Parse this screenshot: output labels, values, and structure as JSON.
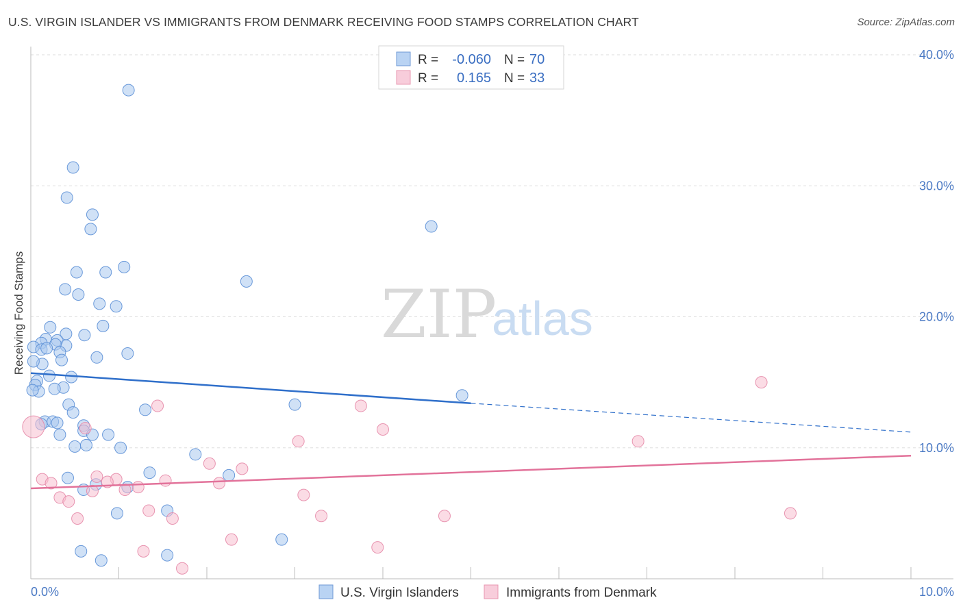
{
  "title": "U.S. VIRGIN ISLANDER VS IMMIGRANTS FROM DENMARK RECEIVING FOOD STAMPS CORRELATION CHART",
  "source": "Source: ZipAtlas.com",
  "watermark": {
    "zip": "ZIP",
    "atlas": "atlas"
  },
  "colors": {
    "blue_fill": "#a9c8ef",
    "blue_stroke": "#5b8fd6",
    "blue_line": "#2f6fca",
    "pink_fill": "#f7bfd0",
    "pink_stroke": "#e68aa8",
    "pink_line": "#e2729a",
    "grid": "#dddddd",
    "axis_text": "#4a79c4"
  },
  "legend": {
    "rows": [
      {
        "r_label": "R =",
        "r_value": "-0.060",
        "n_label": "N =",
        "n_value": "70"
      },
      {
        "r_label": "R =",
        "r_value": "0.165",
        "n_label": "N =",
        "n_value": "33"
      }
    ]
  },
  "chart_data": {
    "type": "scatter",
    "title": "U.S. VIRGIN ISLANDER VS IMMIGRANTS FROM DENMARK RECEIVING FOOD STAMPS CORRELATION CHART",
    "xlabel": "",
    "ylabel": "Receiving Food Stamps",
    "xlim": [
      0,
      10
    ],
    "ylim": [
      0,
      40
    ],
    "x_tick_labels": [
      "0.0%",
      "10.0%"
    ],
    "y_tick_labels": [
      "10.0%",
      "20.0%",
      "30.0%",
      "40.0%"
    ],
    "y_ticks": [
      10,
      20,
      30,
      40
    ],
    "grid": true,
    "legend_position": "top-center",
    "series": [
      {
        "name": "U.S. Virgin Islanders",
        "r": -0.06,
        "n": 70,
        "points": [
          [
            1.11,
            37.3
          ],
          [
            0.48,
            31.4
          ],
          [
            0.41,
            29.1
          ],
          [
            0.7,
            27.8
          ],
          [
            0.68,
            26.7
          ],
          [
            4.55,
            26.9
          ],
          [
            0.52,
            23.4
          ],
          [
            0.85,
            23.4
          ],
          [
            1.06,
            23.8
          ],
          [
            2.45,
            22.7
          ],
          [
            0.39,
            22.1
          ],
          [
            0.54,
            21.7
          ],
          [
            0.78,
            21.0
          ],
          [
            0.97,
            20.8
          ],
          [
            0.82,
            19.3
          ],
          [
            0.22,
            19.2
          ],
          [
            0.4,
            18.7
          ],
          [
            0.61,
            18.6
          ],
          [
            0.17,
            18.3
          ],
          [
            0.3,
            18.2
          ],
          [
            0.12,
            18.0
          ],
          [
            0.03,
            17.7
          ],
          [
            0.4,
            17.8
          ],
          [
            0.12,
            17.5
          ],
          [
            0.28,
            17.9
          ],
          [
            0.18,
            17.6
          ],
          [
            0.33,
            17.3
          ],
          [
            0.75,
            16.9
          ],
          [
            1.1,
            17.2
          ],
          [
            0.35,
            16.7
          ],
          [
            0.13,
            16.4
          ],
          [
            0.03,
            16.6
          ],
          [
            0.21,
            15.5
          ],
          [
            0.46,
            15.4
          ],
          [
            0.07,
            15.1
          ],
          [
            0.05,
            14.8
          ],
          [
            0.37,
            14.6
          ],
          [
            0.27,
            14.5
          ],
          [
            0.09,
            14.3
          ],
          [
            0.02,
            14.4
          ],
          [
            4.9,
            14.0
          ],
          [
            0.43,
            13.3
          ],
          [
            3.0,
            13.3
          ],
          [
            1.3,
            12.9
          ],
          [
            0.48,
            12.7
          ],
          [
            0.16,
            12.0
          ],
          [
            0.25,
            12.0
          ],
          [
            0.3,
            11.9
          ],
          [
            0.12,
            11.8
          ],
          [
            0.6,
            11.7
          ],
          [
            0.6,
            11.3
          ],
          [
            0.7,
            11.0
          ],
          [
            0.33,
            11.0
          ],
          [
            0.88,
            11.0
          ],
          [
            0.5,
            10.1
          ],
          [
            0.63,
            10.2
          ],
          [
            1.02,
            10.0
          ],
          [
            1.87,
            9.5
          ],
          [
            1.35,
            8.1
          ],
          [
            2.25,
            7.9
          ],
          [
            0.42,
            7.7
          ],
          [
            0.74,
            7.2
          ],
          [
            1.1,
            7.0
          ],
          [
            0.6,
            6.8
          ],
          [
            0.98,
            5.0
          ],
          [
            1.55,
            5.2
          ],
          [
            2.85,
            3.0
          ],
          [
            0.57,
            2.1
          ],
          [
            1.55,
            1.8
          ],
          [
            0.8,
            1.4
          ]
        ],
        "trend": {
          "x0": 0.0,
          "y0": 15.7,
          "x1": 5.0,
          "y1": 13.4,
          "x_dash_end": 10.0,
          "y_dash_end": 11.2
        }
      },
      {
        "name": "Immigrants from Denmark",
        "r": 0.165,
        "n": 33,
        "points": [
          [
            0.03,
            11.6
          ],
          [
            1.44,
            13.2
          ],
          [
            3.75,
            13.2
          ],
          [
            4.0,
            11.4
          ],
          [
            3.04,
            10.5
          ],
          [
            6.9,
            10.5
          ],
          [
            8.3,
            15.0
          ],
          [
            0.62,
            11.5
          ],
          [
            2.03,
            8.8
          ],
          [
            2.4,
            8.4
          ],
          [
            0.13,
            7.6
          ],
          [
            0.23,
            7.3
          ],
          [
            0.75,
            7.8
          ],
          [
            0.97,
            7.6
          ],
          [
            1.53,
            7.5
          ],
          [
            0.87,
            7.4
          ],
          [
            2.14,
            7.3
          ],
          [
            1.22,
            7.0
          ],
          [
            1.07,
            6.8
          ],
          [
            0.7,
            6.7
          ],
          [
            0.33,
            6.2
          ],
          [
            0.43,
            5.9
          ],
          [
            3.1,
            6.4
          ],
          [
            1.34,
            5.2
          ],
          [
            3.3,
            4.8
          ],
          [
            4.7,
            4.8
          ],
          [
            8.63,
            5.0
          ],
          [
            0.53,
            4.6
          ],
          [
            1.61,
            4.6
          ],
          [
            2.28,
            3.0
          ],
          [
            1.28,
            2.1
          ],
          [
            3.94,
            2.4
          ],
          [
            1.72,
            0.8
          ]
        ],
        "trend": {
          "x0": 0.0,
          "y0": 6.9,
          "x1": 10.0,
          "y1": 9.4
        }
      }
    ]
  }
}
